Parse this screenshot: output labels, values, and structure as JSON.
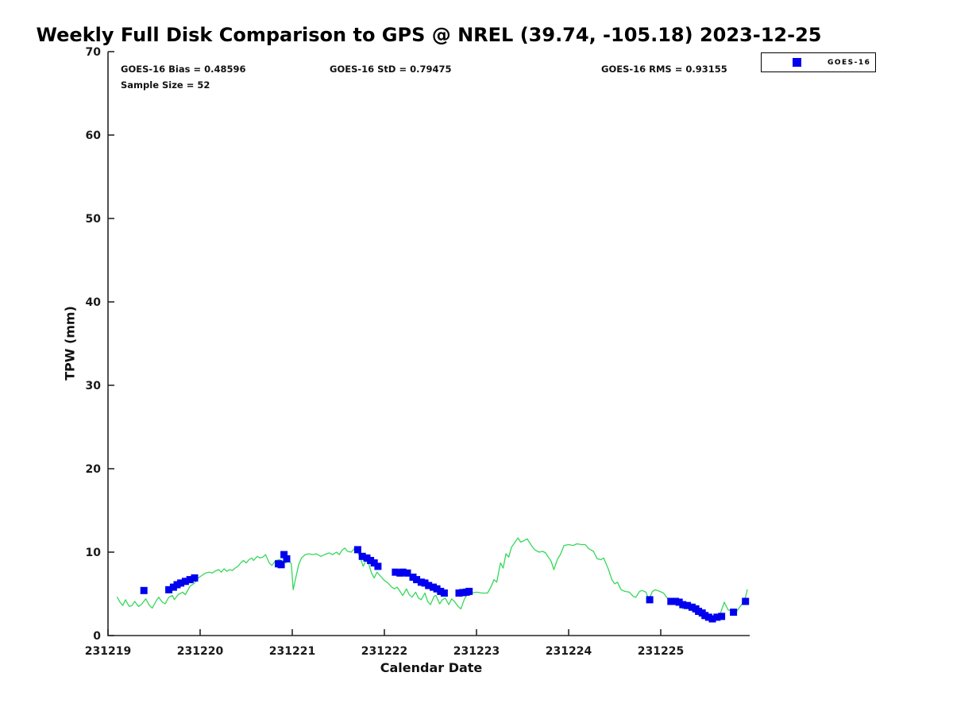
{
  "title": "Weekly Full Disk Comparison to GPS @ NREL (39.74, -105.18) 2023-12-25",
  "stats": {
    "bias": "GOES-16 Bias = 0.48596",
    "std": "GOES-16 StD = 0.79475",
    "rms": "GOES-16 RMS = 0.93155",
    "sample_size": "Sample Size = 52"
  },
  "legend": {
    "items": [
      {
        "label": "GOES-16",
        "marker": "filled-square",
        "color": "#0000EE"
      }
    ]
  },
  "colors": {
    "goes16_marker": "#0000EE",
    "gps_line": "#35D85A",
    "axis": "#262626",
    "text": "#111111"
  },
  "chart_data": {
    "type": "line+scatter",
    "title": "Weekly Full Disk Comparison to GPS @ NREL (39.74, -105.18) 2023-12-25",
    "xlabel": "Calendar Date",
    "ylabel": "TPW (mm)",
    "x_ticks": [
      "231219",
      "231220",
      "231221",
      "231222",
      "231223",
      "231224",
      "231225"
    ],
    "x_tick_positions": [
      0,
      1,
      2,
      3,
      4,
      5,
      6
    ],
    "xlim": [
      0,
      7
    ],
    "ylim": [
      0,
      70
    ],
    "y_ticks": [
      0,
      10,
      20,
      30,
      40,
      50,
      60,
      70
    ],
    "grid": false,
    "legend_position": "top-right-outside",
    "series": [
      {
        "name": "GPS",
        "type": "line",
        "color": "#35D85A",
        "in_legend": false,
        "points": [
          [
            0.1,
            4.6
          ],
          [
            0.13,
            4.0
          ],
          [
            0.16,
            3.6
          ],
          [
            0.19,
            4.3
          ],
          [
            0.23,
            3.5
          ],
          [
            0.26,
            3.6
          ],
          [
            0.29,
            4.1
          ],
          [
            0.33,
            3.5
          ],
          [
            0.36,
            3.7
          ],
          [
            0.41,
            4.4
          ],
          [
            0.45,
            3.6
          ],
          [
            0.48,
            3.3
          ],
          [
            0.52,
            4.1
          ],
          [
            0.55,
            4.6
          ],
          [
            0.59,
            4.0
          ],
          [
            0.62,
            3.8
          ],
          [
            0.66,
            4.6
          ],
          [
            0.7,
            4.8
          ],
          [
            0.72,
            4.3
          ],
          [
            0.76,
            4.9
          ],
          [
            0.81,
            5.2
          ],
          [
            0.84,
            4.9
          ],
          [
            0.89,
            5.9
          ],
          [
            0.94,
            6.3
          ],
          [
            0.98,
            6.9
          ],
          [
            1.03,
            7.3
          ],
          [
            1.06,
            7.5
          ],
          [
            1.1,
            7.6
          ],
          [
            1.13,
            7.5
          ],
          [
            1.16,
            7.7
          ],
          [
            1.2,
            7.9
          ],
          [
            1.23,
            7.6
          ],
          [
            1.26,
            8.0
          ],
          [
            1.29,
            7.7
          ],
          [
            1.32,
            7.9
          ],
          [
            1.35,
            7.8
          ],
          [
            1.38,
            8.1
          ],
          [
            1.41,
            8.3
          ],
          [
            1.44,
            8.7
          ],
          [
            1.47,
            9.0
          ],
          [
            1.5,
            8.7
          ],
          [
            1.53,
            9.1
          ],
          [
            1.56,
            9.3
          ],
          [
            1.58,
            9.0
          ],
          [
            1.62,
            9.5
          ],
          [
            1.65,
            9.3
          ],
          [
            1.68,
            9.4
          ],
          [
            1.71,
            9.7
          ],
          [
            1.75,
            8.7
          ],
          [
            1.78,
            8.4
          ],
          [
            1.82,
            9.0
          ],
          [
            1.86,
            9.1
          ],
          [
            1.9,
            8.9
          ],
          [
            1.93,
            8.7
          ],
          [
            1.96,
            9.0
          ],
          [
            1.99,
            8.6
          ],
          [
            2.01,
            5.5
          ],
          [
            2.04,
            7.0
          ],
          [
            2.07,
            8.5
          ],
          [
            2.1,
            9.3
          ],
          [
            2.14,
            9.7
          ],
          [
            2.18,
            9.8
          ],
          [
            2.22,
            9.7
          ],
          [
            2.26,
            9.8
          ],
          [
            2.31,
            9.5
          ],
          [
            2.35,
            9.7
          ],
          [
            2.4,
            9.9
          ],
          [
            2.44,
            9.7
          ],
          [
            2.48,
            10.0
          ],
          [
            2.51,
            9.7
          ],
          [
            2.54,
            10.2
          ],
          [
            2.57,
            10.5
          ],
          [
            2.6,
            10.1
          ],
          [
            2.64,
            10.0
          ],
          [
            2.68,
            10.5
          ],
          [
            2.71,
            10.0
          ],
          [
            2.74,
            9.3
          ],
          [
            2.77,
            8.3
          ],
          [
            2.8,
            9.0
          ],
          [
            2.83,
            8.6
          ],
          [
            2.86,
            7.5
          ],
          [
            2.89,
            6.9
          ],
          [
            2.92,
            7.6
          ],
          [
            2.96,
            7.1
          ],
          [
            3.0,
            6.6
          ],
          [
            3.04,
            6.3
          ],
          [
            3.08,
            5.8
          ],
          [
            3.11,
            5.6
          ],
          [
            3.14,
            5.8
          ],
          [
            3.17,
            5.3
          ],
          [
            3.2,
            4.8
          ],
          [
            3.24,
            5.6
          ],
          [
            3.27,
            4.9
          ],
          [
            3.3,
            4.6
          ],
          [
            3.34,
            5.2
          ],
          [
            3.37,
            4.5
          ],
          [
            3.4,
            4.3
          ],
          [
            3.44,
            5.1
          ],
          [
            3.47,
            4.1
          ],
          [
            3.5,
            3.7
          ],
          [
            3.54,
            4.7
          ],
          [
            3.56,
            4.8
          ],
          [
            3.6,
            3.8
          ],
          [
            3.63,
            4.3
          ],
          [
            3.66,
            4.5
          ],
          [
            3.7,
            3.7
          ],
          [
            3.73,
            4.4
          ],
          [
            3.76,
            4.1
          ],
          [
            3.8,
            3.5
          ],
          [
            3.83,
            3.2
          ],
          [
            3.87,
            4.4
          ],
          [
            3.9,
            4.9
          ],
          [
            3.94,
            5.1
          ],
          [
            4.0,
            5.2
          ],
          [
            4.06,
            5.1
          ],
          [
            4.12,
            5.1
          ],
          [
            4.16,
            5.9
          ],
          [
            4.19,
            6.7
          ],
          [
            4.22,
            6.4
          ],
          [
            4.26,
            8.7
          ],
          [
            4.29,
            8.1
          ],
          [
            4.32,
            9.8
          ],
          [
            4.35,
            9.4
          ],
          [
            4.38,
            10.6
          ],
          [
            4.45,
            11.7
          ],
          [
            4.48,
            11.2
          ],
          [
            4.52,
            11.4
          ],
          [
            4.55,
            11.6
          ],
          [
            4.59,
            10.9
          ],
          [
            4.63,
            10.3
          ],
          [
            4.68,
            10.0
          ],
          [
            4.72,
            10.1
          ],
          [
            4.75,
            9.9
          ],
          [
            4.78,
            9.4
          ],
          [
            4.81,
            8.9
          ],
          [
            4.84,
            7.9
          ],
          [
            4.88,
            9.2
          ],
          [
            4.91,
            9.7
          ],
          [
            4.95,
            10.8
          ],
          [
            5.0,
            10.9
          ],
          [
            5.05,
            10.8
          ],
          [
            5.09,
            11.0
          ],
          [
            5.14,
            10.9
          ],
          [
            5.18,
            10.9
          ],
          [
            5.22,
            10.4
          ],
          [
            5.27,
            10.1
          ],
          [
            5.31,
            9.2
          ],
          [
            5.35,
            9.1
          ],
          [
            5.38,
            9.3
          ],
          [
            5.43,
            8.0
          ],
          [
            5.47,
            6.7
          ],
          [
            5.5,
            6.2
          ],
          [
            5.53,
            6.4
          ],
          [
            5.57,
            5.5
          ],
          [
            5.61,
            5.3
          ],
          [
            5.66,
            5.2
          ],
          [
            5.7,
            4.7
          ],
          [
            5.73,
            4.6
          ],
          [
            5.77,
            5.3
          ],
          [
            5.8,
            5.4
          ],
          [
            5.84,
            5.2
          ],
          [
            5.87,
            4.3
          ],
          [
            5.91,
            5.3
          ],
          [
            5.94,
            5.5
          ],
          [
            5.99,
            5.3
          ],
          [
            6.03,
            5.1
          ],
          [
            6.07,
            4.5
          ],
          [
            6.11,
            4.0
          ],
          [
            6.14,
            3.9
          ],
          [
            6.18,
            4.0
          ],
          [
            6.21,
            3.9
          ],
          [
            6.24,
            3.2
          ],
          [
            6.27,
            3.9
          ],
          [
            6.31,
            3.5
          ],
          [
            6.36,
            3.2
          ],
          [
            6.41,
            2.9
          ],
          [
            6.46,
            2.6
          ],
          [
            6.51,
            2.3
          ],
          [
            6.56,
            2.1
          ],
          [
            6.6,
            2.2
          ],
          [
            6.64,
            2.4
          ],
          [
            6.69,
            4.0
          ],
          [
            6.73,
            3.1
          ],
          [
            6.77,
            2.9
          ],
          [
            6.81,
            2.7
          ],
          [
            6.85,
            3.3
          ],
          [
            6.89,
            3.9
          ],
          [
            6.92,
            4.6
          ],
          [
            6.94,
            5.5
          ]
        ]
      },
      {
        "name": "GOES-16",
        "type": "scatter",
        "color": "#0000EE",
        "in_legend": true,
        "points": [
          [
            0.39,
            5.4
          ],
          [
            0.66,
            5.5
          ],
          [
            0.71,
            5.8
          ],
          [
            0.75,
            6.1
          ],
          [
            0.79,
            6.3
          ],
          [
            0.84,
            6.5
          ],
          [
            0.89,
            6.7
          ],
          [
            0.94,
            6.9
          ],
          [
            1.85,
            8.6
          ],
          [
            1.88,
            8.5
          ],
          [
            1.91,
            9.7
          ],
          [
            1.94,
            9.2
          ],
          [
            2.71,
            10.3
          ],
          [
            2.76,
            9.5
          ],
          [
            2.81,
            9.3
          ],
          [
            2.85,
            9.0
          ],
          [
            2.89,
            8.7
          ],
          [
            2.93,
            8.3
          ],
          [
            3.12,
            7.6
          ],
          [
            3.17,
            7.5
          ],
          [
            3.2,
            7.6
          ],
          [
            3.25,
            7.5
          ],
          [
            3.31,
            7.0
          ],
          [
            3.35,
            6.7
          ],
          [
            3.4,
            6.4
          ],
          [
            3.44,
            6.3
          ],
          [
            3.48,
            6.0
          ],
          [
            3.53,
            5.8
          ],
          [
            3.57,
            5.6
          ],
          [
            3.61,
            5.3
          ],
          [
            3.65,
            5.1
          ],
          [
            3.81,
            5.1
          ],
          [
            3.85,
            5.15
          ],
          [
            3.89,
            5.2
          ],
          [
            3.92,
            5.3
          ],
          [
            5.88,
            4.3
          ],
          [
            6.11,
            4.1
          ],
          [
            6.16,
            4.1
          ],
          [
            6.2,
            4.0
          ],
          [
            6.24,
            3.7
          ],
          [
            6.29,
            3.6
          ],
          [
            6.34,
            3.4
          ],
          [
            6.38,
            3.2
          ],
          [
            6.41,
            2.9
          ],
          [
            6.45,
            2.7
          ],
          [
            6.48,
            2.4
          ],
          [
            6.52,
            2.2
          ],
          [
            6.56,
            2.0
          ],
          [
            6.61,
            2.2
          ],
          [
            6.66,
            2.3
          ],
          [
            6.79,
            2.8
          ],
          [
            6.92,
            4.1
          ]
        ]
      }
    ]
  }
}
